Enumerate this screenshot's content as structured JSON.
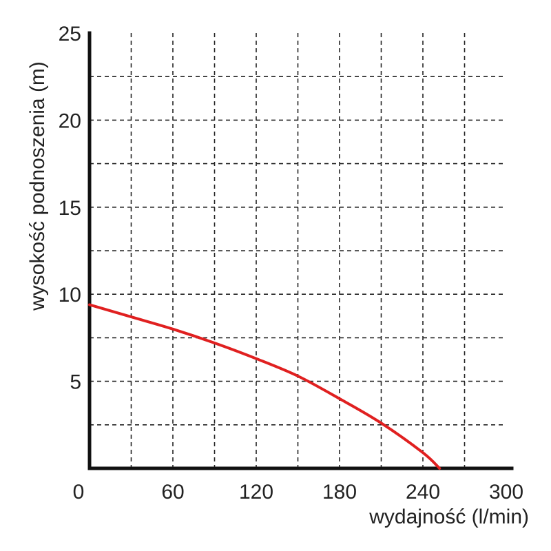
{
  "chart_data": {
    "type": "line",
    "xlabel": "wydajność (l/min)",
    "ylabel": "wysokość podnoszenia (m)",
    "xlim": [
      0,
      300
    ],
    "ylim": [
      0,
      25
    ],
    "x_ticks": [
      0,
      60,
      120,
      180,
      240,
      300
    ],
    "y_ticks": [
      5,
      10,
      15,
      20,
      25
    ],
    "x_gridlines": [
      30,
      60,
      90,
      120,
      150,
      180,
      210,
      240,
      270
    ],
    "y_gridlines": [
      2.5,
      5,
      7.5,
      10,
      12.5,
      15,
      17.5,
      20,
      22.5
    ],
    "grid": true,
    "series": [
      {
        "color": "#e02020",
        "x": [
          0,
          30,
          60,
          90,
          120,
          150,
          180,
          210,
          240,
          252
        ],
        "y": [
          9.4,
          8.7,
          8.0,
          7.2,
          6.3,
          5.3,
          4.0,
          2.6,
          0.9,
          0
        ]
      }
    ]
  }
}
